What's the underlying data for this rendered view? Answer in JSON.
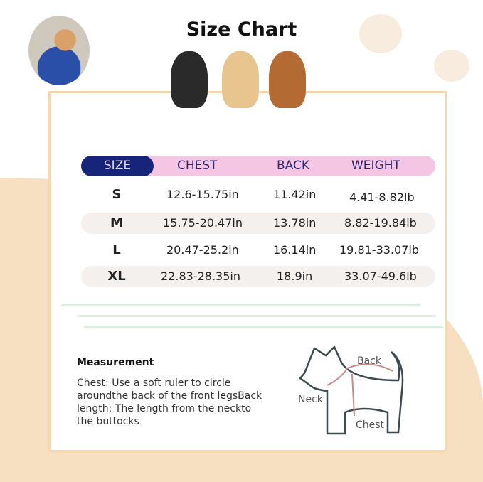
{
  "title": "Size Chart",
  "table": {
    "headers": [
      "SIZE",
      "CHEST",
      "BACK",
      "WEIGHT"
    ],
    "rows": [
      [
        "S",
        "12.6-15.75in",
        "11.42in",
        "4.41-8.82lb"
      ],
      [
        "M",
        "15.75-20.47in",
        "13.78in",
        "8.82-19.84lb"
      ],
      [
        "L",
        "20.47-25.2in",
        "16.14in",
        "19.81-33.07lb"
      ],
      [
        "XL",
        "22.83-28.35in",
        "18.9in",
        "33.07-49.6lb"
      ]
    ]
  },
  "measurement": {
    "title": "Measurement",
    "text": "Chest: Use a soft ruler to circle aroundthe back of the front legsBack length: The length from the neckto the buttocks"
  },
  "diagram": {
    "back": "Back",
    "neck": "Neck",
    "chest": "Chest"
  },
  "colors": {
    "header_size": "#16247a",
    "header": "#f5c6e3",
    "background": "#f7dfc1",
    "card_border": "#f6d7ae"
  }
}
